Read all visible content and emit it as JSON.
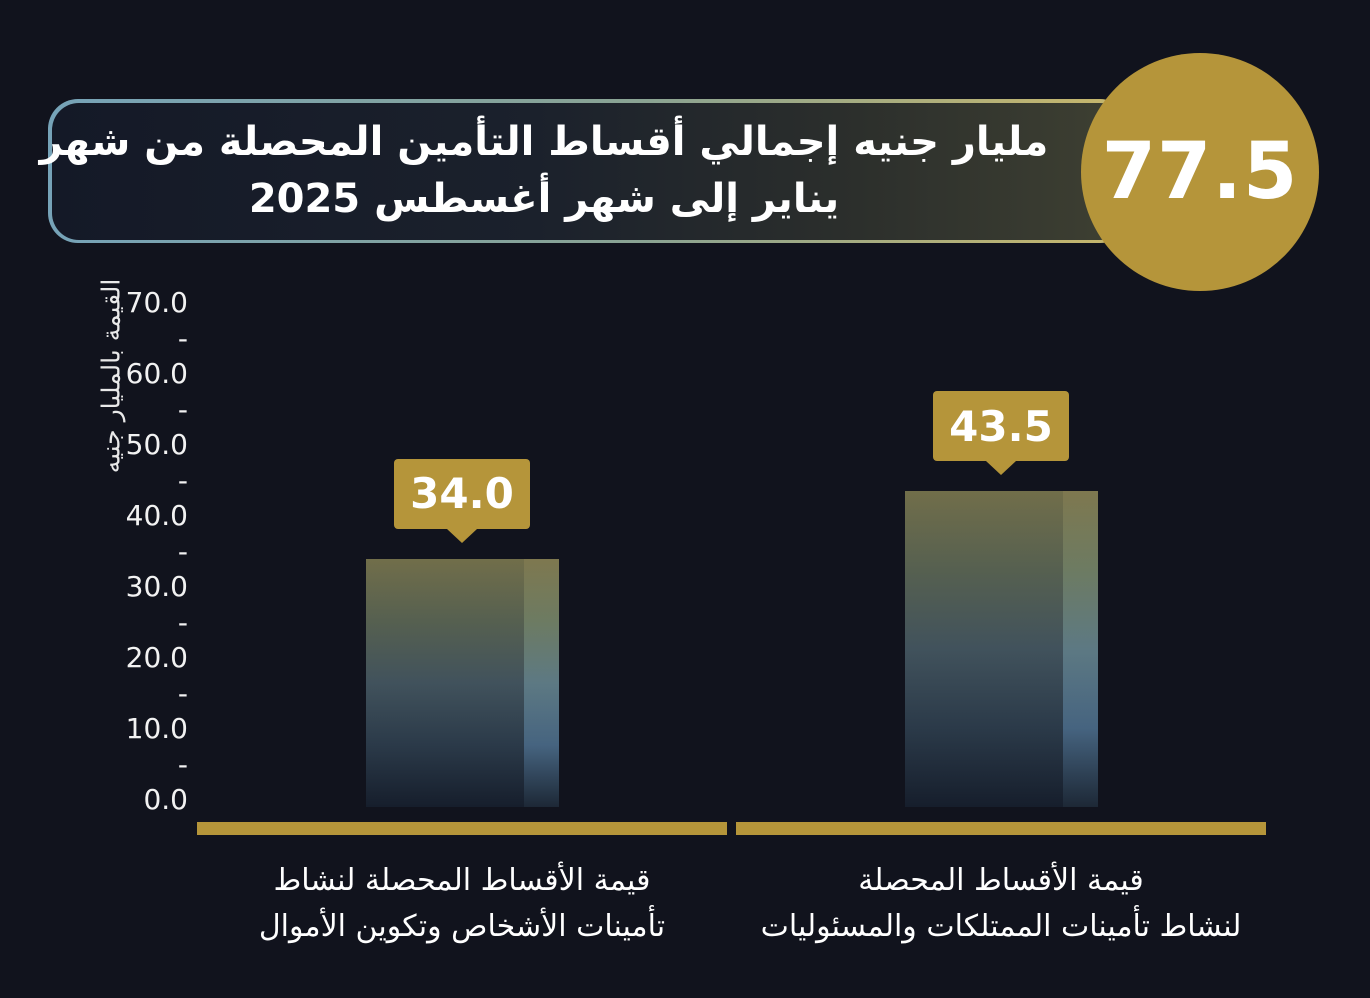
{
  "header": {
    "title_line1": "مليار جنيه إجمالي أقساط التأمين المحصلة من شهر",
    "title_line2": "يناير إلى شهر أغسطس 2025",
    "total_value": "77.5"
  },
  "chart_data": {
    "type": "bar",
    "title": "مليار جنيه إجمالي أقساط التأمين المحصلة من شهر يناير إلى شهر أغسطس 2025",
    "total": 77.5,
    "xlabel": "",
    "ylabel": "القيمة بالمليار جنيه",
    "ylim": [
      0,
      70
    ],
    "ytick_interval": 10,
    "minor_tick_interval": 5,
    "grid": false,
    "legend": false,
    "yticks": [
      {
        "value": 70,
        "label": "70.0"
      },
      {
        "value": 65,
        "label": "-"
      },
      {
        "value": 60,
        "label": "60.0"
      },
      {
        "value": 55,
        "label": "-"
      },
      {
        "value": 50,
        "label": "50.0"
      },
      {
        "value": 45,
        "label": "-"
      },
      {
        "value": 40,
        "label": "40.0"
      },
      {
        "value": 35,
        "label": "-"
      },
      {
        "value": 30,
        "label": "30.0"
      },
      {
        "value": 25,
        "label": "-"
      },
      {
        "value": 20,
        "label": "20.0"
      },
      {
        "value": 15,
        "label": "-"
      },
      {
        "value": 10,
        "label": "10.0"
      },
      {
        "value": 5,
        "label": "-"
      },
      {
        "value": 0,
        "label": "0.0"
      }
    ],
    "categories": [
      "قيمة الأقساط المحصلة لنشاط تأمينات الأشخاص وتكوين الأموال",
      "قيمة الأقساط المحصلة لنشاط تأمينات الممتلكات والمسئوليات"
    ],
    "values": [
      34.0,
      43.5
    ],
    "bars": [
      {
        "value": 34.0,
        "value_label": "34.0",
        "category_lines": [
          "قيمة الأقساط المحصلة لنشاط",
          "تأمينات الأشخاص وتكوين الأموال"
        ]
      },
      {
        "value": 43.5,
        "value_label": "43.5",
        "category_lines": [
          "قيمة الأقساط المحصلة",
          "لنشاط تأمينات الممتلكات والمسئوليات"
        ]
      }
    ]
  },
  "colors": {
    "background": "#11131d",
    "gold": "#b5953a",
    "text": "#ffffff",
    "title_border_left": "#76a3b8",
    "title_border_right": "#c8b76b",
    "title_fill_left": "#141927",
    "title_fill_right": "#3e4032",
    "bar_gradient": [
      "#716e4a",
      "#566050",
      "#41525c",
      "#2b3a49",
      "#161e2c"
    ],
    "bar_highlight_gradient": [
      "#7e784f",
      "#6d7b62",
      "#5d7983",
      "#466480",
      "#1d2836"
    ]
  }
}
